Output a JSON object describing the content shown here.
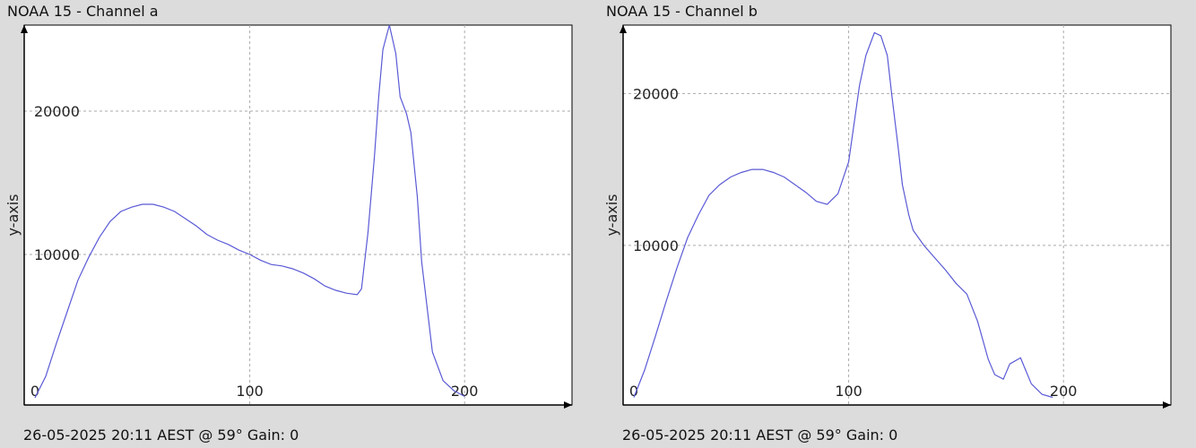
{
  "chart_data": [
    {
      "type": "line",
      "title": "NOAA 15 - Channel a",
      "xlabel": "",
      "ylabel": "y-axis",
      "xlim": [
        -5,
        250
      ],
      "ylim": [
        -500,
        26000
      ],
      "x_ticks": [
        0,
        100,
        200
      ],
      "y_ticks": [
        10000,
        20000
      ],
      "grid": true,
      "footer": "26-05-2025 20:11 AEST @ 59° Gain: 0",
      "series": [
        {
          "color": "#5a5ad6",
          "x": [
            0,
            5,
            10,
            15,
            20,
            25,
            30,
            35,
            40,
            45,
            50,
            55,
            60,
            65,
            70,
            75,
            80,
            85,
            90,
            95,
            100,
            105,
            110,
            115,
            120,
            125,
            130,
            135,
            140,
            145,
            150,
            152,
            155,
            158,
            160,
            162,
            165,
            168,
            170,
            173,
            175,
            178,
            180,
            185,
            190,
            195,
            200
          ],
          "y": [
            0,
            1500,
            3800,
            6000,
            8200,
            9800,
            11200,
            12300,
            13000,
            13300,
            13500,
            13500,
            13300,
            13000,
            12500,
            12000,
            11400,
            11000,
            10700,
            10300,
            10000,
            9600,
            9300,
            9200,
            9000,
            8700,
            8300,
            7800,
            7500,
            7300,
            7200,
            7600,
            11500,
            16800,
            21000,
            24300,
            26000,
            24000,
            21000,
            19800,
            18500,
            14000,
            9500,
            3200,
            1200,
            500,
            100
          ]
        }
      ]
    },
    {
      "type": "line",
      "title": "NOAA 15 - Channel b",
      "xlabel": "",
      "ylabel": "y-axis",
      "xlim": [
        -5,
        250
      ],
      "ylim": [
        -500,
        24500
      ],
      "x_ticks": [
        0,
        100,
        200
      ],
      "y_ticks": [
        10000,
        20000
      ],
      "grid": true,
      "footer": "26-05-2025 20:11 AEST @ 59° Gain: 0",
      "series": [
        {
          "color": "#5a5ad6",
          "x": [
            0,
            5,
            10,
            15,
            20,
            25,
            30,
            35,
            40,
            45,
            50,
            55,
            60,
            65,
            70,
            75,
            80,
            85,
            90,
            95,
            100,
            105,
            108,
            112,
            115,
            118,
            120,
            123,
            125,
            128,
            130,
            135,
            140,
            145,
            150,
            155,
            160,
            165,
            168,
            172,
            175,
            180,
            185,
            190,
            195
          ],
          "y": [
            0,
            1800,
            4000,
            6300,
            8500,
            10500,
            12000,
            13300,
            14000,
            14500,
            14800,
            15000,
            15000,
            14800,
            14500,
            14000,
            13500,
            12900,
            12700,
            13400,
            15500,
            20500,
            22500,
            24000,
            23800,
            22500,
            20000,
            16500,
            14000,
            12000,
            11000,
            10000,
            9200,
            8400,
            7500,
            6800,
            5000,
            2500,
            1500,
            1200,
            2200,
            2600,
            900,
            200,
            0
          ]
        }
      ]
    }
  ]
}
